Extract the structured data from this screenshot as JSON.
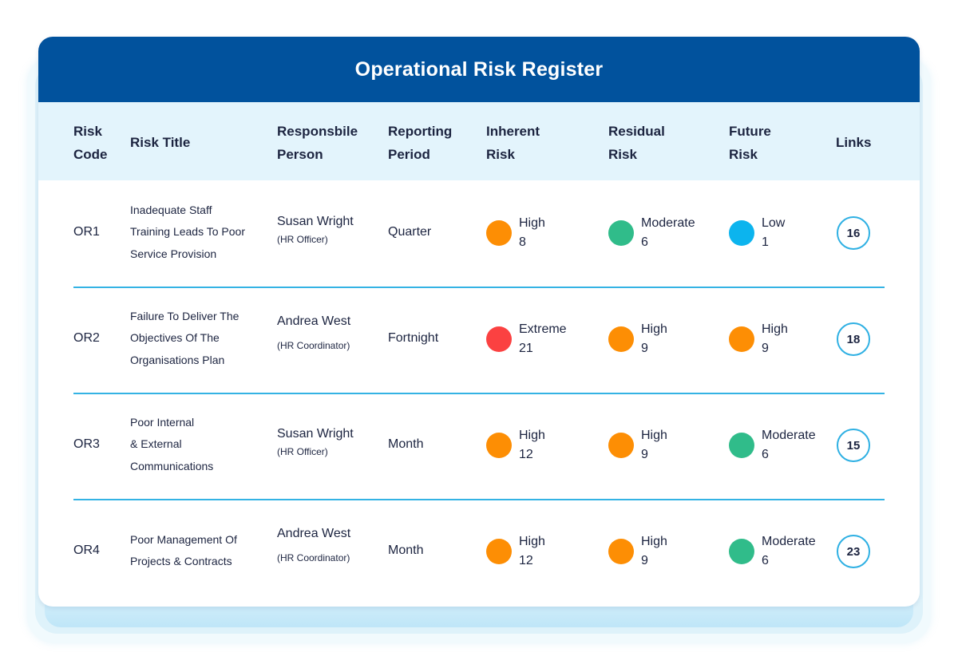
{
  "title": "Operational Risk Register",
  "colors": {
    "header_bg": "#01529d",
    "subheader_bg": "#e3f4fc",
    "divider": "#34b3e4",
    "Extreme": "#fb4141",
    "High": "#fd8e04",
    "Moderate": "#30bc8a",
    "Low": "#0cb4ee"
  },
  "columns": [
    {
      "key": "code",
      "line1": "Risk",
      "line2": "Code"
    },
    {
      "key": "title",
      "line1": "Risk Title",
      "line2": ""
    },
    {
      "key": "person",
      "line1": "Responsbile",
      "line2": "Person"
    },
    {
      "key": "period",
      "line1": "Reporting",
      "line2": "Period"
    },
    {
      "key": "inherent",
      "line1": "Inherent",
      "line2": "Risk"
    },
    {
      "key": "residual",
      "line1": "Residual",
      "line2": "Risk"
    },
    {
      "key": "future",
      "line1": "Future",
      "line2": "Risk"
    },
    {
      "key": "links",
      "line1": "Links",
      "line2": ""
    }
  ],
  "rows": [
    {
      "code": "OR1",
      "title_lines": [
        "Inadequate Staff",
        "Training Leads To Poor",
        "Service Provision"
      ],
      "person": "Susan Wright",
      "role": "(HR Officer)",
      "period": "Quarter",
      "inherent": {
        "level": "High",
        "score": "8"
      },
      "residual": {
        "level": "Moderate",
        "score": "6"
      },
      "future": {
        "level": "Low",
        "score": "1"
      },
      "links": "16"
    },
    {
      "code": "OR2",
      "title_lines": [
        "Failure To Deliver The",
        "Objectives Of The",
        "Organisations Plan"
      ],
      "person": "Andrea West",
      "role": "(HR Coordinator)",
      "period": "Fortnight",
      "inherent": {
        "level": "Extreme",
        "score": "21"
      },
      "residual": {
        "level": "High",
        "score": "9"
      },
      "future": {
        "level": "High",
        "score": "9"
      },
      "links": "18"
    },
    {
      "code": "OR3",
      "title_lines": [
        "Poor Internal",
        "& External",
        "Communications"
      ],
      "person": "Susan Wright",
      "role": "(HR Officer)",
      "period": "Month",
      "inherent": {
        "level": "High",
        "score": "12"
      },
      "residual": {
        "level": "High",
        "score": "9"
      },
      "future": {
        "level": "Moderate",
        "score": "6"
      },
      "links": "15"
    },
    {
      "code": "OR4",
      "title_lines": [
        "Poor Management Of",
        "Projects & Contracts"
      ],
      "person": "Andrea West",
      "role": "(HR Coordinator)",
      "period": "Month",
      "inherent": {
        "level": "High",
        "score": "12"
      },
      "residual": {
        "level": "High",
        "score": "9"
      },
      "future": {
        "level": "Moderate",
        "score": "6"
      },
      "links": "23"
    }
  ]
}
